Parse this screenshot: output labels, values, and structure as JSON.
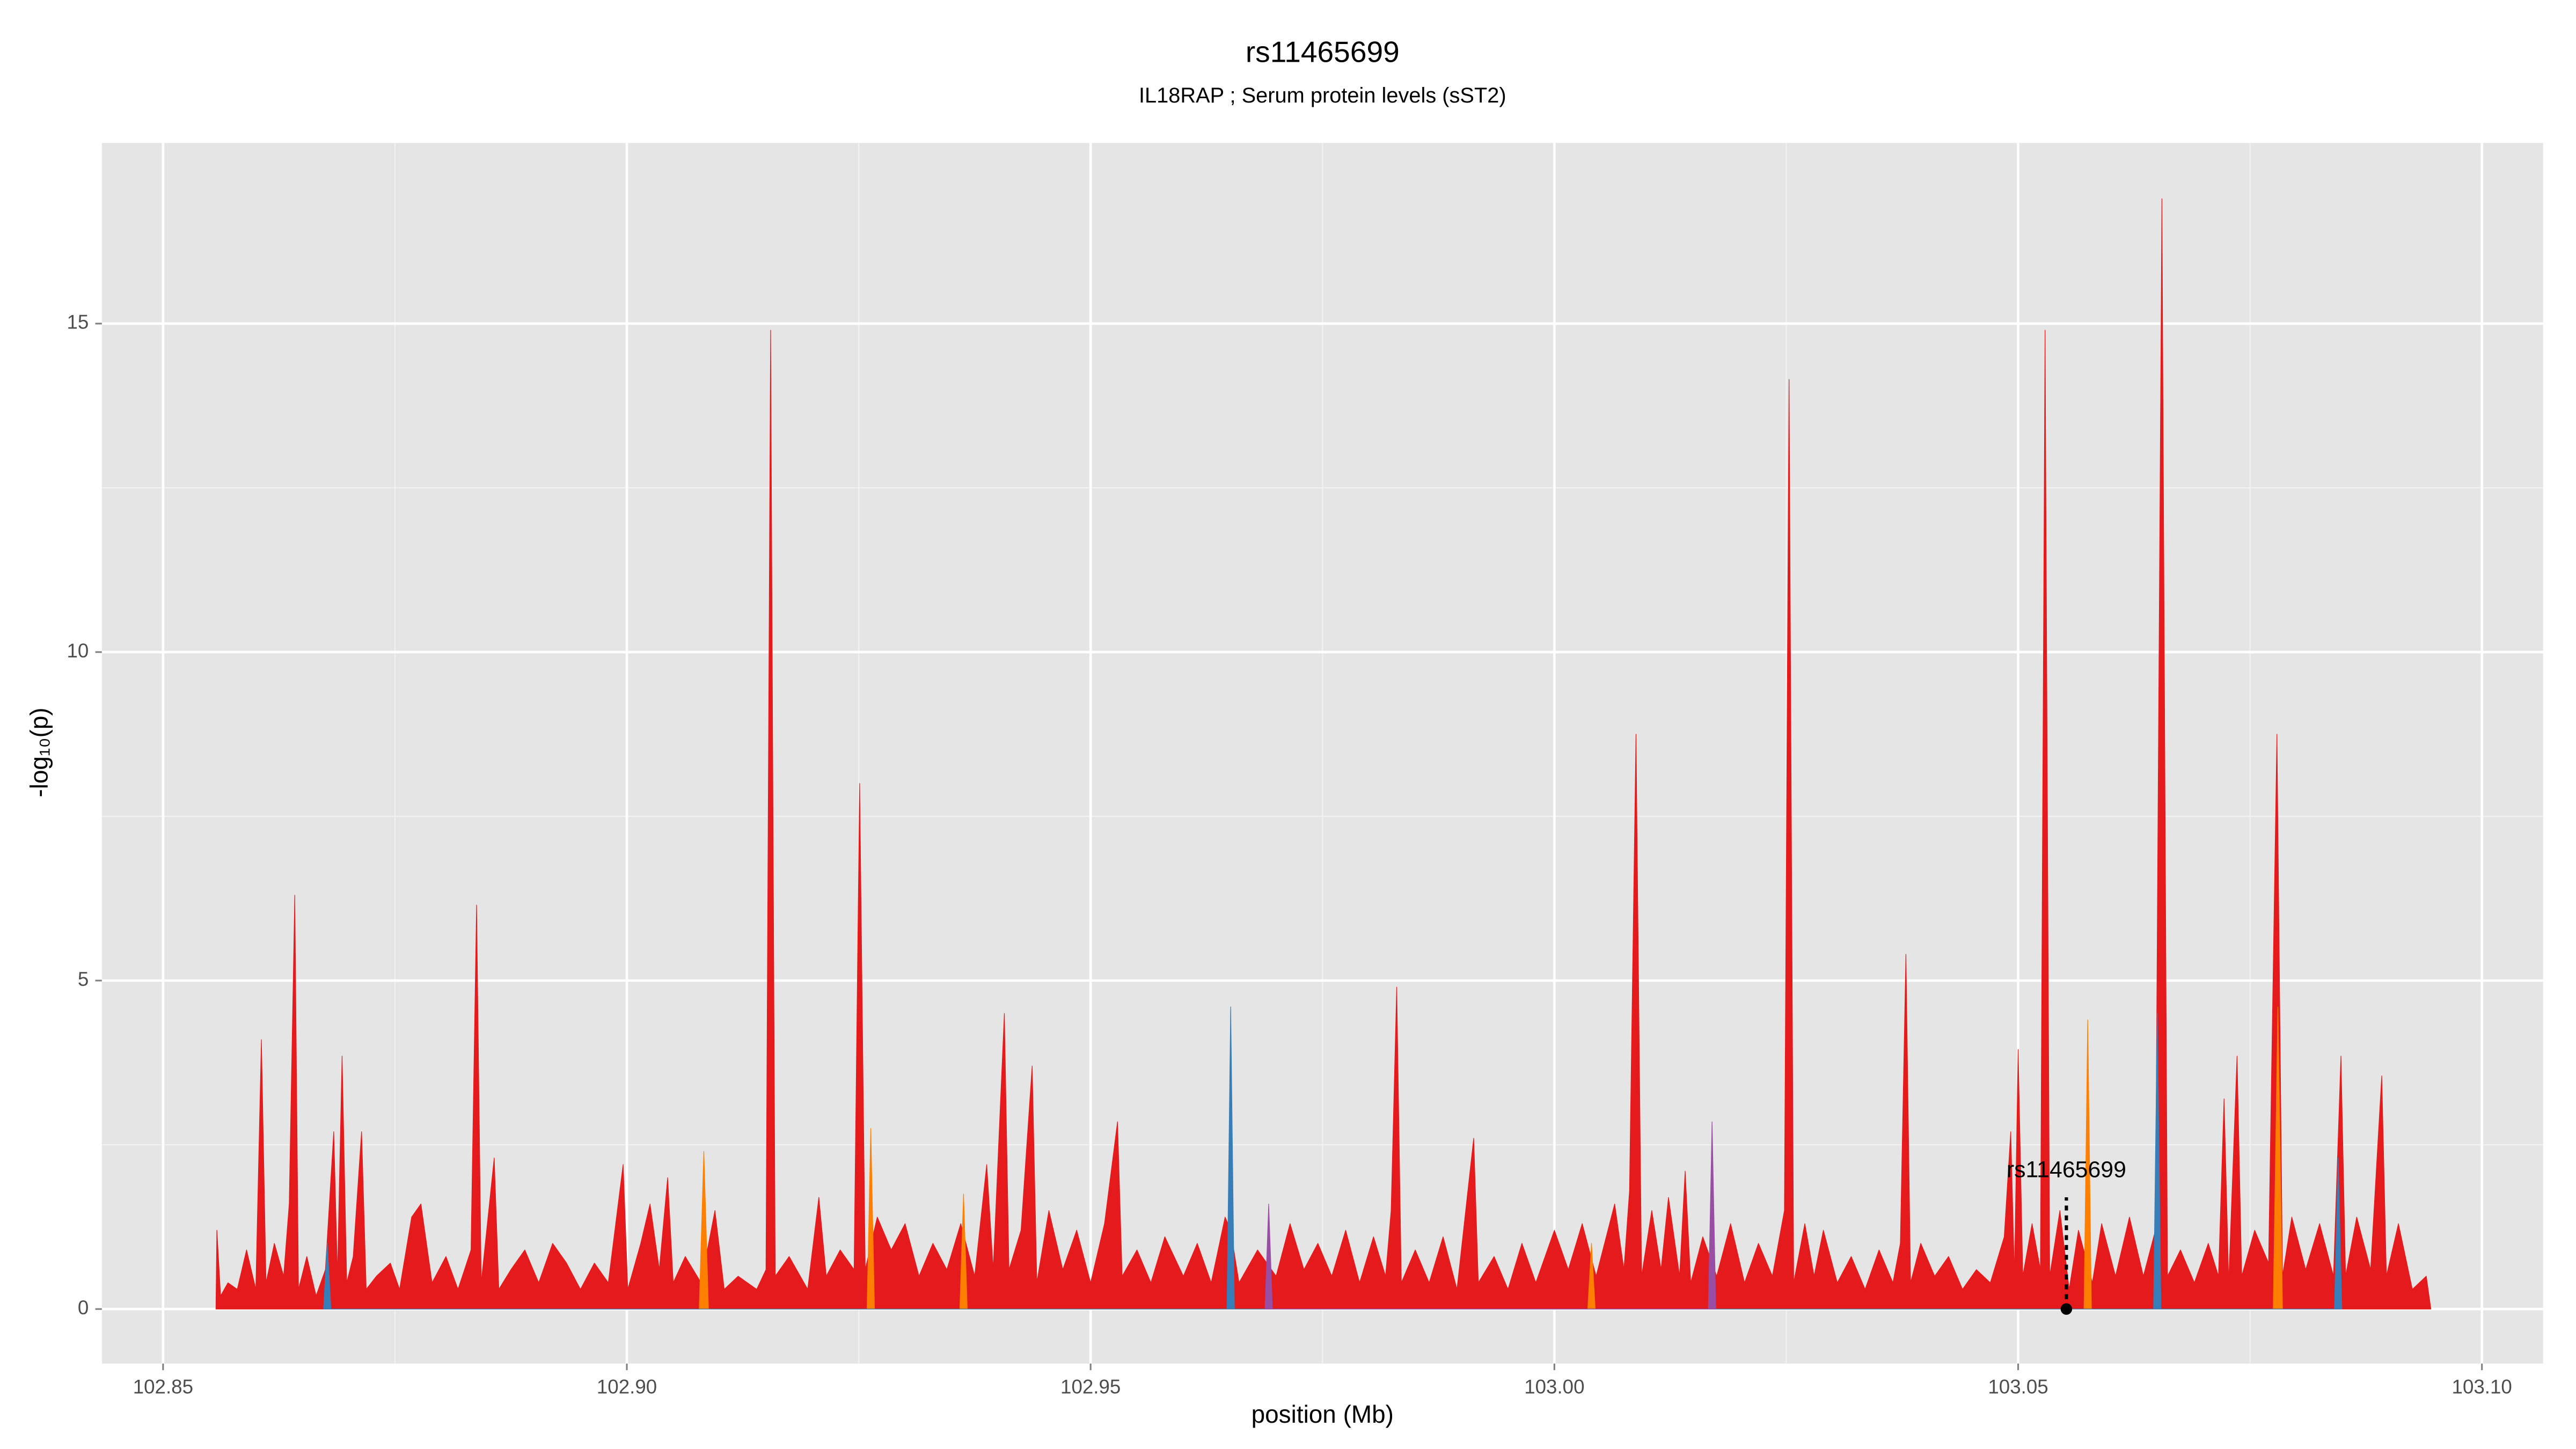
{
  "chart_data": {
    "type": "area",
    "title": "rs11465699",
    "subtitle": "IL18RAP ; Serum protein levels (sST2)",
    "x_label": "position (Mb)",
    "y_label": "-log₁₀(p)",
    "xlim": [
      102.8434,
      103.1066
    ],
    "ylim": [
      -0.83,
      17.75
    ],
    "xticks": [
      102.85,
      {
        "value": 102.9,
        "label": "102.90"
      },
      102.95,
      {
        "value": 103,
        "label": "103.00"
      },
      103.05,
      {
        "value": 103.1,
        "label": "103.10"
      }
    ],
    "x_minor_ticks": [
      102.875,
      102.925,
      102.975,
      103.025,
      103.075
    ],
    "yticks": [
      0,
      5,
      10,
      15
    ],
    "y_minor_ticks": [
      2.5,
      7.5,
      12.5
    ],
    "grid": true,
    "background": "#e5e5e5",
    "series": [
      {
        "name": "red",
        "color": "#e41a1c",
        "x": [
          102.8557,
          102.8558,
          102.8562,
          102.857,
          102.858,
          102.859,
          102.86,
          102.8606,
          102.8611,
          102.862,
          102.863,
          102.8636,
          102.8642,
          102.8646,
          102.8655,
          102.8665,
          102.8675,
          102.8684,
          102.8688,
          102.8693,
          102.8698,
          102.8705,
          102.8714,
          102.8719,
          102.873,
          102.8745,
          102.8755,
          102.8768,
          102.8778,
          102.879,
          102.8805,
          102.8818,
          102.8832,
          102.8838,
          102.8843,
          102.8857,
          102.8862,
          102.8875,
          102.889,
          102.8905,
          102.892,
          102.8935,
          102.895,
          102.8965,
          102.898,
          102.8996,
          102.9001,
          102.9015,
          102.9025,
          102.9035,
          102.9044,
          102.905,
          102.9063,
          102.908,
          102.9095,
          102.9105,
          102.912,
          102.914,
          102.915,
          102.9155,
          102.916,
          102.9175,
          102.9195,
          102.9207,
          102.9215,
          102.923,
          102.9245,
          102.9251,
          102.9257,
          102.927,
          102.9285,
          102.93,
          102.9315,
          102.933,
          102.9345,
          102.936,
          102.9375,
          102.9388,
          102.9395,
          102.9407,
          102.9412,
          102.9425,
          102.9437,
          102.9442,
          102.9455,
          102.947,
          102.9485,
          102.95,
          102.9515,
          102.9529,
          102.9534,
          102.955,
          102.9565,
          102.958,
          102.96,
          102.9615,
          102.963,
          102.9645,
          102.9651,
          102.966,
          102.968,
          102.97,
          102.9715,
          102.973,
          102.9745,
          102.976,
          102.9775,
          102.979,
          102.9805,
          102.9818,
          102.9824,
          102.983,
          102.9835,
          102.985,
          102.9865,
          102.988,
          102.9895,
          102.9913,
          102.9918,
          102.9935,
          102.995,
          102.9965,
          102.998,
          103.0,
          103.0015,
          103.003,
          103.0045,
          103.0065,
          103.0075,
          103.0081,
          103.0088,
          103.0094,
          103.0105,
          103.0115,
          103.0123,
          103.0135,
          103.0141,
          103.0147,
          103.016,
          103.0175,
          103.019,
          103.0205,
          103.022,
          103.0235,
          103.0248,
          103.0253,
          103.0258,
          103.027,
          103.028,
          103.029,
          103.0305,
          103.032,
          103.0335,
          103.035,
          103.0365,
          103.0373,
          103.0379,
          103.0384,
          103.0395,
          103.041,
          103.0425,
          103.044,
          103.0455,
          103.047,
          103.0485,
          103.0492,
          103.0496,
          103.05,
          103.0505,
          103.0515,
          103.0524,
          103.0529,
          103.0534,
          103.0545,
          103.0555,
          103.0565,
          103.058,
          103.059,
          103.0605,
          103.062,
          103.0635,
          103.0648,
          103.0655,
          103.0661,
          103.0675,
          103.069,
          103.0705,
          103.0716,
          103.0722,
          103.0727,
          103.0736,
          103.0741,
          103.0755,
          103.077,
          103.0779,
          103.0785,
          103.0795,
          103.081,
          103.0825,
          103.084,
          103.0848,
          103.0853,
          103.0865,
          103.088,
          103.0892,
          103.0897,
          103.091,
          103.0925,
          103.094,
          103.0945
        ],
        "values": [
          0,
          1.2,
          0.2,
          0.4,
          0.3,
          0.9,
          0.3,
          4.1,
          0.4,
          1.0,
          0.5,
          1.6,
          6.3,
          0.3,
          0.8,
          0.2,
          0.6,
          2.7,
          0.5,
          3.85,
          0.4,
          0.8,
          2.7,
          0.3,
          0.5,
          0.7,
          0.3,
          1.4,
          1.6,
          0.4,
          0.8,
          0.3,
          0.9,
          6.15,
          0.4,
          2.3,
          0.3,
          0.6,
          0.9,
          0.4,
          1.0,
          0.7,
          0.3,
          0.7,
          0.4,
          2.2,
          0.3,
          1.0,
          1.6,
          0.6,
          2.0,
          0.4,
          0.8,
          0.4,
          1.5,
          0.3,
          0.5,
          0.3,
          0.6,
          14.9,
          0.5,
          0.8,
          0.3,
          1.7,
          0.5,
          0.9,
          0.6,
          8.0,
          0.6,
          1.4,
          0.9,
          1.3,
          0.5,
          1.0,
          0.6,
          1.3,
          0.5,
          2.2,
          0.6,
          4.5,
          0.6,
          1.2,
          3.7,
          0.4,
          1.5,
          0.6,
          1.2,
          0.4,
          1.3,
          2.85,
          0.5,
          0.9,
          0.4,
          1.1,
          0.5,
          1.0,
          0.4,
          1.4,
          1.2,
          0.4,
          0.9,
          0.5,
          1.3,
          0.6,
          1.0,
          0.5,
          1.2,
          0.4,
          1.1,
          0.5,
          1.5,
          4.9,
          0.4,
          0.9,
          0.4,
          1.1,
          0.3,
          2.6,
          0.4,
          0.8,
          0.3,
          1.0,
          0.4,
          1.2,
          0.6,
          1.3,
          0.5,
          1.6,
          0.6,
          1.8,
          8.75,
          0.5,
          1.5,
          0.6,
          1.7,
          0.5,
          2.1,
          0.4,
          1.1,
          0.5,
          1.3,
          0.4,
          1.0,
          0.5,
          1.5,
          14.15,
          0.4,
          1.3,
          0.5,
          1.2,
          0.4,
          0.8,
          0.3,
          0.9,
          0.4,
          1.0,
          5.4,
          0.4,
          1.0,
          0.5,
          0.8,
          0.3,
          0.6,
          0.4,
          1.1,
          2.7,
          0.5,
          3.95,
          0.5,
          1.3,
          0.6,
          14.9,
          0.5,
          1.5,
          0.3,
          1.2,
          0.4,
          1.3,
          0.5,
          1.4,
          0.5,
          1.2,
          16.9,
          0.5,
          0.9,
          0.4,
          1.0,
          0.5,
          3.2,
          0.4,
          3.85,
          0.5,
          1.2,
          0.7,
          8.75,
          0.5,
          1.4,
          0.6,
          1.3,
          0.5,
          3.85,
          0.5,
          1.4,
          0.6,
          3.55,
          0.5,
          1.3,
          0.3,
          0.5,
          0
        ]
      },
      {
        "name": "orange",
        "color": "#ff7f00",
        "x": [
          102.9078,
          102.9083,
          102.9088,
          102.9259,
          102.9263,
          102.9267,
          102.9359,
          102.9363,
          102.9367,
          103.0036,
          103.004,
          103.0044,
          103.0571,
          103.0575,
          103.0579,
          103.0775,
          103.078,
          103.0785
        ],
        "values": [
          0,
          2.4,
          0,
          0,
          2.75,
          0,
          0,
          1.75,
          0,
          0,
          1.0,
          0,
          0,
          4.4,
          0,
          0,
          4.6,
          0
        ]
      },
      {
        "name": "blue",
        "color": "#377eb8",
        "x": [
          102.8673,
          102.8677,
          102.8681,
          102.9647,
          102.9651,
          102.9655,
          103.0646,
          103.065,
          103.0654,
          103.0841,
          103.0845,
          103.0849
        ],
        "values": [
          0,
          1.0,
          0,
          0,
          4.6,
          0,
          0,
          4.5,
          0,
          0,
          2.3,
          0
        ]
      },
      {
        "name": "purple",
        "color": "#984ea3",
        "x": [
          102.9688,
          102.9692,
          102.9696,
          103.0166,
          103.017,
          103.0174
        ],
        "values": [
          0,
          1.6,
          0,
          0,
          2.85,
          0
        ]
      }
    ],
    "annotation": {
      "label": "rs11465699",
      "x": 103.0552,
      "y": 0
    }
  }
}
